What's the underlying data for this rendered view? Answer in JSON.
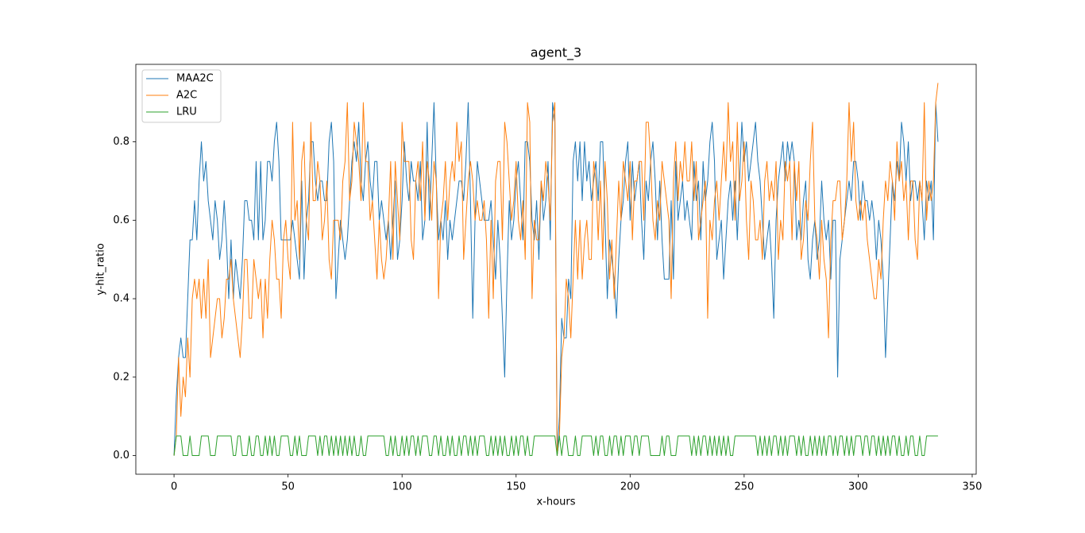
{
  "chart_data": {
    "type": "line",
    "title": "agent_3",
    "xlabel": "x-hours",
    "ylabel": "y-hit_ratio",
    "xlim": [
      -16.75,
      351.75
    ],
    "ylim": [
      -0.0475,
      0.9975
    ],
    "xticks": [
      0,
      50,
      100,
      150,
      200,
      250,
      300,
      350
    ],
    "yticks": [
      {
        "value": 0,
        "label": "0.0"
      },
      0.2,
      0.4,
      0.6,
      0.8
    ],
    "legend": "upper left",
    "grid": false,
    "x": [
      0,
      1,
      2,
      3,
      4,
      5,
      6,
      7,
      8,
      9,
      10,
      11,
      12,
      13,
      14,
      15,
      16,
      17,
      18,
      19,
      20,
      21,
      22,
      23,
      24,
      25,
      26,
      27,
      28,
      29,
      30,
      31,
      32,
      33,
      34,
      35,
      36,
      37,
      38,
      39,
      40,
      41,
      42,
      43,
      44,
      45,
      46,
      47,
      48,
      49,
      50,
      51,
      52,
      53,
      54,
      55,
      56,
      57,
      58,
      59,
      60,
      61,
      62,
      63,
      64,
      65,
      66,
      67,
      68,
      69,
      70,
      71,
      72,
      73,
      74,
      75,
      76,
      77,
      78,
      79,
      80,
      81,
      82,
      83,
      84,
      85,
      86,
      87,
      88,
      89,
      90,
      91,
      92,
      93,
      94,
      95,
      96,
      97,
      98,
      99,
      100,
      101,
      102,
      103,
      104,
      105,
      106,
      107,
      108,
      109,
      110,
      111,
      112,
      113,
      114,
      115,
      116,
      117,
      118,
      119,
      120,
      121,
      122,
      123,
      124,
      125,
      126,
      127,
      128,
      129,
      130,
      131,
      132,
      133,
      134,
      135,
      136,
      137,
      138,
      139,
      140,
      141,
      142,
      143,
      144,
      145,
      146,
      147,
      148,
      149,
      150,
      151,
      152,
      153,
      154,
      155,
      156,
      157,
      158,
      159,
      160,
      161,
      162,
      163,
      164,
      165,
      166,
      167,
      168,
      169,
      170,
      171,
      172,
      173,
      174,
      175,
      176,
      177,
      178,
      179,
      180,
      181,
      182,
      183,
      184,
      185,
      186,
      187,
      188,
      189,
      190,
      191,
      192,
      193,
      194,
      195,
      196,
      197,
      198,
      199,
      200,
      201,
      202,
      203,
      204,
      205,
      206,
      207,
      208,
      209,
      210,
      211,
      212,
      213,
      214,
      215,
      216,
      217,
      218,
      219,
      220,
      221,
      222,
      223,
      224,
      225,
      226,
      227,
      228,
      229,
      230,
      231,
      232,
      233,
      234,
      235,
      236,
      237,
      238,
      239,
      240,
      241,
      242,
      243,
      244,
      245,
      246,
      247,
      248,
      249,
      250,
      251,
      252,
      253,
      254,
      255,
      256,
      257,
      258,
      259,
      260,
      261,
      262,
      263,
      264,
      265,
      266,
      267,
      268,
      269,
      270,
      271,
      272,
      273,
      274,
      275,
      276,
      277,
      278,
      279,
      280,
      281,
      282,
      283,
      284,
      285,
      286,
      287,
      288,
      289,
      290,
      291,
      292,
      293,
      294,
      295,
      296,
      297,
      298,
      299,
      300,
      301,
      302,
      303,
      304,
      305,
      306,
      307,
      308,
      309,
      310,
      311,
      312,
      313,
      314,
      315,
      316,
      317,
      318,
      319,
      320,
      321,
      322,
      323,
      324,
      325,
      326,
      327,
      328,
      329,
      330,
      331,
      332,
      333,
      334,
      335
    ],
    "series": [
      {
        "name": "MAA2C",
        "color": "#1f77b4",
        "values": [
          0,
          0.15,
          0.25,
          0.3,
          0.25,
          0.25,
          0.4,
          0.55,
          0.55,
          0.65,
          0.55,
          0.7,
          0.8,
          0.7,
          0.75,
          0.65,
          0.6,
          0.55,
          0.65,
          0.6,
          0.5,
          0.55,
          0.65,
          0.55,
          0.4,
          0.55,
          0.4,
          0.5,
          0.45,
          0.4,
          0.5,
          0.65,
          0.65,
          0.6,
          0.6,
          0.55,
          0.75,
          0.55,
          0.75,
          0.55,
          0.6,
          0.75,
          0.75,
          0.7,
          0.8,
          0.85,
          0.75,
          0.55,
          0.55,
          0.55,
          0.55,
          0.55,
          0.6,
          0.55,
          0.5,
          0.45,
          0.7,
          0.45,
          0.6,
          0.65,
          0.8,
          0.8,
          0.7,
          0.65,
          0.7,
          0.7,
          0.65,
          0.65,
          0.8,
          0.85,
          0.75,
          0.4,
          0.5,
          0.6,
          0.55,
          0.5,
          0.55,
          0.65,
          0.75,
          0.8,
          0.75,
          0.85,
          0.7,
          0.65,
          0.75,
          0.8,
          0.7,
          0.65,
          0.75,
          0.75,
          0.6,
          0.65,
          0.6,
          0.55,
          0.6,
          0.5,
          0.6,
          0.7,
          0.5,
          0.55,
          0.65,
          0.8,
          0.7,
          0.65,
          0.75,
          0.7,
          0.7,
          0.65,
          0.75,
          0.55,
          0.6,
          0.85,
          0.6,
          0.75,
          0.9,
          0.7,
          0.55,
          0.6,
          0.55,
          0.65,
          0.5,
          0.6,
          0.55,
          0.6,
          0.65,
          0.7,
          0.7,
          0.65,
          0.75,
          0.9,
          0.65,
          0.35,
          0.6,
          0.75,
          0.7,
          0.65,
          0.6,
          0.6,
          0.6,
          0.65,
          0.55,
          0.45,
          0.6,
          0.5,
          0.35,
          0.2,
          0.45,
          0.65,
          0.55,
          0.6,
          0.7,
          0.75,
          0.65,
          0.55,
          0.8,
          0.8,
          0.75,
          0.6,
          0.55,
          0.65,
          0.5,
          0.7,
          0.6,
          0.65,
          0.75,
          0.55,
          0.9,
          0.85,
          0,
          0.1,
          0.35,
          0.3,
          0.3,
          0.45,
          0.4,
          0.75,
          0.8,
          0.7,
          0.8,
          0.65,
          0.8,
          0.7,
          0.75,
          0.65,
          0.7,
          0.75,
          0.65,
          0.8,
          0.8,
          0.6,
          0.4,
          0.55,
          0.5,
          0.45,
          0.35,
          0.5,
          0.6,
          0.65,
          0.75,
          0.8,
          0.6,
          0.75,
          0.65,
          0.7,
          0.75,
          0.6,
          0.5,
          0.7,
          0.65,
          0.75,
          0.8,
          0.7,
          0.55,
          0.7,
          0.55,
          0.45,
          0.45,
          0.45,
          0.65,
          0.45,
          0.75,
          0.6,
          0.65,
          0.7,
          0.6,
          0.65,
          0.6,
          0.55,
          0.75,
          0.65,
          0.7,
          0.55,
          0.75,
          0.65,
          0.7,
          0.8,
          0.85,
          0.75,
          0.5,
          0.55,
          0.6,
          0.45,
          0.55,
          0.65,
          0.7,
          0.6,
          0.7,
          0.55,
          0.7,
          0.85,
          0.75,
          0.8,
          0.7,
          0.75,
          0.8,
          0.85,
          0.75,
          0.7,
          0.6,
          0.5,
          0.55,
          0.6,
          0.5,
          0.35,
          0.6,
          0.7,
          0.75,
          0.8,
          0.7,
          0.8,
          0.75,
          0.8,
          0.75,
          0.55,
          0.6,
          0.55,
          0.65,
          0.7,
          0.5,
          0.45,
          0.55,
          0.6,
          0.5,
          0.55,
          0.7,
          0.6,
          0.55,
          0.6,
          0.45,
          0.6,
          0.6,
          0.2,
          0.5,
          0.55,
          0.6,
          0.65,
          0.7,
          0.65,
          0.75,
          0.75,
          0.7,
          0.6,
          0.7,
          0.65,
          0.65,
          0.6,
          0.65,
          0.6,
          0.5,
          0.6,
          0.55,
          0.45,
          0.25,
          0.4,
          0.55,
          0.7,
          0.65,
          0.75,
          0.7,
          0.85,
          0.8,
          0.7,
          0.8,
          0.65,
          0.7,
          0.7,
          0.65,
          0.7,
          0.65,
          0.55,
          0.7,
          0.65,
          0.7,
          0.55,
          0.9,
          0.8
        ]
      },
      {
        "name": "A2C",
        "color": "#ff7f0e",
        "values": [
          0,
          0.05,
          0.25,
          0.1,
          0.2,
          0.15,
          0.3,
          0.2,
          0.4,
          0.45,
          0.4,
          0.45,
          0.35,
          0.45,
          0.35,
          0.5,
          0.25,
          0.3,
          0.35,
          0.4,
          0.4,
          0.3,
          0.35,
          0.45,
          0.45,
          0.5,
          0.4,
          0.35,
          0.3,
          0.25,
          0.35,
          0.5,
          0.5,
          0.35,
          0.35,
          0.5,
          0.45,
          0.4,
          0.45,
          0.3,
          0.45,
          0.35,
          0.5,
          0.6,
          0.55,
          0.45,
          0.45,
          0.35,
          0.55,
          0.6,
          0.5,
          0.45,
          0.85,
          0.6,
          0.65,
          0.5,
          0.75,
          0.8,
          0.6,
          0.55,
          0.85,
          0.65,
          0.65,
          0.75,
          0.7,
          0.55,
          0.6,
          0.7,
          0.5,
          0.45,
          0.6,
          0.6,
          0.6,
          0.55,
          0.7,
          0.75,
          0.9,
          0.65,
          0.7,
          0.85,
          0.8,
          0.75,
          0.65,
          0.9,
          0.75,
          0.75,
          0.6,
          0.65,
          0.55,
          0.45,
          0.6,
          0.5,
          0.45,
          0.5,
          0.6,
          0.75,
          0.5,
          0.75,
          0.65,
          0.55,
          0.85,
          0.75,
          0.75,
          0.75,
          0.55,
          0.5,
          0.7,
          0.75,
          0.65,
          0.8,
          0.6,
          0.75,
          0.7,
          0.6,
          0.75,
          0.7,
          0.4,
          0.6,
          0.65,
          0.75,
          0.6,
          0.7,
          0.75,
          0.7,
          0.85,
          0.75,
          0.8,
          0.5,
          0.6,
          0.7,
          0.75,
          0.7,
          0.6,
          0.65,
          0.6,
          0.6,
          0.65,
          0.55,
          0.35,
          0.6,
          0.4,
          0.7,
          0.75,
          0.75,
          0.55,
          0.85,
          0.8,
          0.7,
          0.6,
          0.65,
          0.75,
          0.6,
          0.55,
          0.65,
          0.5,
          0.9,
          0.85,
          0.4,
          0.6,
          0.55,
          0.55,
          0.7,
          0.65,
          0.75,
          0.7,
          0.6,
          0.85,
          0.9,
          0,
          0.05,
          0.25,
          0.3,
          0.45,
          0.4,
          0.3,
          0.45,
          0.6,
          0.45,
          0.6,
          0.45,
          0.55,
          0.6,
          0.5,
          0.5,
          0.75,
          0.7,
          0.55,
          0.7,
          0.5,
          0.75,
          0.65,
          0.45,
          0.55,
          0.4,
          0.55,
          0.7,
          0.6,
          0.75,
          0.7,
          0.65,
          0.75,
          0.55,
          0.7,
          0.7,
          0.75,
          0.75,
          0.6,
          0.85,
          0.85,
          0.75,
          0.6,
          0.55,
          0.65,
          0.6,
          0.75,
          0.7,
          0.65,
          0.6,
          0.4,
          0.7,
          0.8,
          0.65,
          0.75,
          0.7,
          0.8,
          0.7,
          0.7,
          0.8,
          0.65,
          0.75,
          0.55,
          0.6,
          0.65,
          0.7,
          0.35,
          0.6,
          0.55,
          0.65,
          0.7,
          0.6,
          0.7,
          0.8,
          0.7,
          0.9,
          0.75,
          0.8,
          0.6,
          0.85,
          0.65,
          0.7,
          0.8,
          0.6,
          0.5,
          0.7,
          0.65,
          0.55,
          0.55,
          0.6,
          0.5,
          0.7,
          0.75,
          0.65,
          0.7,
          0.65,
          0.75,
          0.5,
          0.6,
          0.55,
          0.75,
          0.7,
          0.75,
          0.55,
          0.75,
          0.65,
          0.75,
          0.5,
          0.55,
          0.65,
          0.6,
          0.75,
          0.85,
          0.6,
          0.55,
          0.45,
          0.6,
          0.5,
          0.45,
          0.3,
          0.55,
          0.65,
          0.65,
          0.7,
          0.7,
          0.55,
          0.6,
          0.7,
          0.9,
          0.75,
          0.85,
          0.65,
          0.6,
          0.65,
          0.6,
          0.65,
          0.55,
          0.5,
          0.45,
          0.4,
          0.4,
          0.5,
          0.45,
          0.6,
          0.7,
          0.65,
          0.75,
          0.7,
          0.6,
          0.8,
          0.7,
          0.75,
          0.65,
          0.7,
          0.55,
          0.7,
          0.7,
          0.55,
          0.5,
          0.7,
          0.65,
          0.9,
          0.6,
          0.7,
          0.65,
          0.7,
          0.9,
          0.95
        ]
      },
      {
        "name": "LRU",
        "color": "#2ca02c",
        "values": [
          0,
          0.05,
          0.05,
          0.05,
          0,
          0,
          0,
          0.05,
          0,
          0,
          0,
          0,
          0.05,
          0.05,
          0.05,
          0.05,
          0,
          0,
          0,
          0.05,
          0.05,
          0.05,
          0.05,
          0.05,
          0.05,
          0.05,
          0,
          0,
          0.05,
          0.05,
          0,
          0,
          0,
          0.05,
          0,
          0,
          0.05,
          0.05,
          0,
          0,
          0.05,
          0,
          0.05,
          0,
          0.05,
          0,
          0,
          0.05,
          0.05,
          0.05,
          0.05,
          0,
          0,
          0.05,
          0,
          0.05,
          0,
          0,
          0,
          0.05,
          0.05,
          0.05,
          0.05,
          0,
          0.05,
          0,
          0.05,
          0.05,
          0,
          0.05,
          0,
          0.05,
          0,
          0.05,
          0,
          0.05,
          0,
          0.05,
          0,
          0.05,
          0,
          0,
          0.05,
          0,
          0,
          0.05,
          0.05,
          0.05,
          0.05,
          0.05,
          0.05,
          0.05,
          0.05,
          0,
          0,
          0.05,
          0,
          0.05,
          0,
          0,
          0.05,
          0,
          0.05,
          0,
          0.05,
          0.05,
          0,
          0.05,
          0,
          0.05,
          0.05,
          0.05,
          0,
          0,
          0.05,
          0.05,
          0,
          0.05,
          0,
          0,
          0.05,
          0,
          0.05,
          0,
          0,
          0.05,
          0,
          0.05,
          0.05,
          0,
          0.05,
          0,
          0.05,
          0,
          0.05,
          0.05,
          0.05,
          0,
          0,
          0.05,
          0,
          0.05,
          0,
          0.05,
          0,
          0.05,
          0,
          0,
          0.05,
          0,
          0.05,
          0,
          0.05,
          0.05,
          0,
          0.05,
          0,
          0,
          0.05,
          0.05,
          0.05,
          0.05,
          0.05,
          0.05,
          0.05,
          0.05,
          0.05,
          0.05,
          0,
          0.05,
          0,
          0.05,
          0.05,
          0,
          0,
          0,
          0.05,
          0,
          0,
          0.05,
          0.05,
          0.05,
          0.05,
          0.05,
          0,
          0.05,
          0,
          0.05,
          0.05,
          0,
          0,
          0.05,
          0,
          0.05,
          0.05,
          0,
          0.05,
          0,
          0.05,
          0.05,
          0.05,
          0,
          0.05,
          0.05,
          0,
          0.05,
          0.05,
          0.05,
          0.05,
          0,
          0,
          0,
          0,
          0,
          0.05,
          0,
          0.05,
          0.05,
          0,
          0,
          0,
          0.05,
          0.05,
          0.05,
          0.05,
          0.05,
          0.05,
          0,
          0.05,
          0,
          0.05,
          0,
          0.05,
          0.05,
          0,
          0.05,
          0,
          0.05,
          0,
          0.05,
          0,
          0.05,
          0,
          0.05,
          0,
          0,
          0.05,
          0.05,
          0.05,
          0.05,
          0.05,
          0.05,
          0.05,
          0.05,
          0.05,
          0.05,
          0,
          0.05,
          0,
          0.05,
          0,
          0.05,
          0,
          0.05,
          0.05,
          0,
          0.05,
          0,
          0.05,
          0,
          0.05,
          0.05,
          0.05,
          0,
          0.05,
          0,
          0.05,
          0,
          0,
          0.05,
          0,
          0.05,
          0,
          0.05,
          0,
          0.05,
          0,
          0.05,
          0.05,
          0,
          0.05,
          0,
          0.05,
          0.05,
          0,
          0.05,
          0,
          0.05,
          0,
          0.05,
          0.05,
          0.05,
          0,
          0.05,
          0.05,
          0,
          0.05,
          0.05,
          0,
          0.05,
          0,
          0.05,
          0,
          0.05,
          0,
          0.05,
          0.05,
          0,
          0.05,
          0,
          0,
          0.05,
          0,
          0.05,
          0.05,
          0,
          0,
          0.05,
          0,
          0,
          0.05,
          0.05,
          0.05,
          0.05,
          0.05,
          0.05
        ]
      }
    ]
  }
}
